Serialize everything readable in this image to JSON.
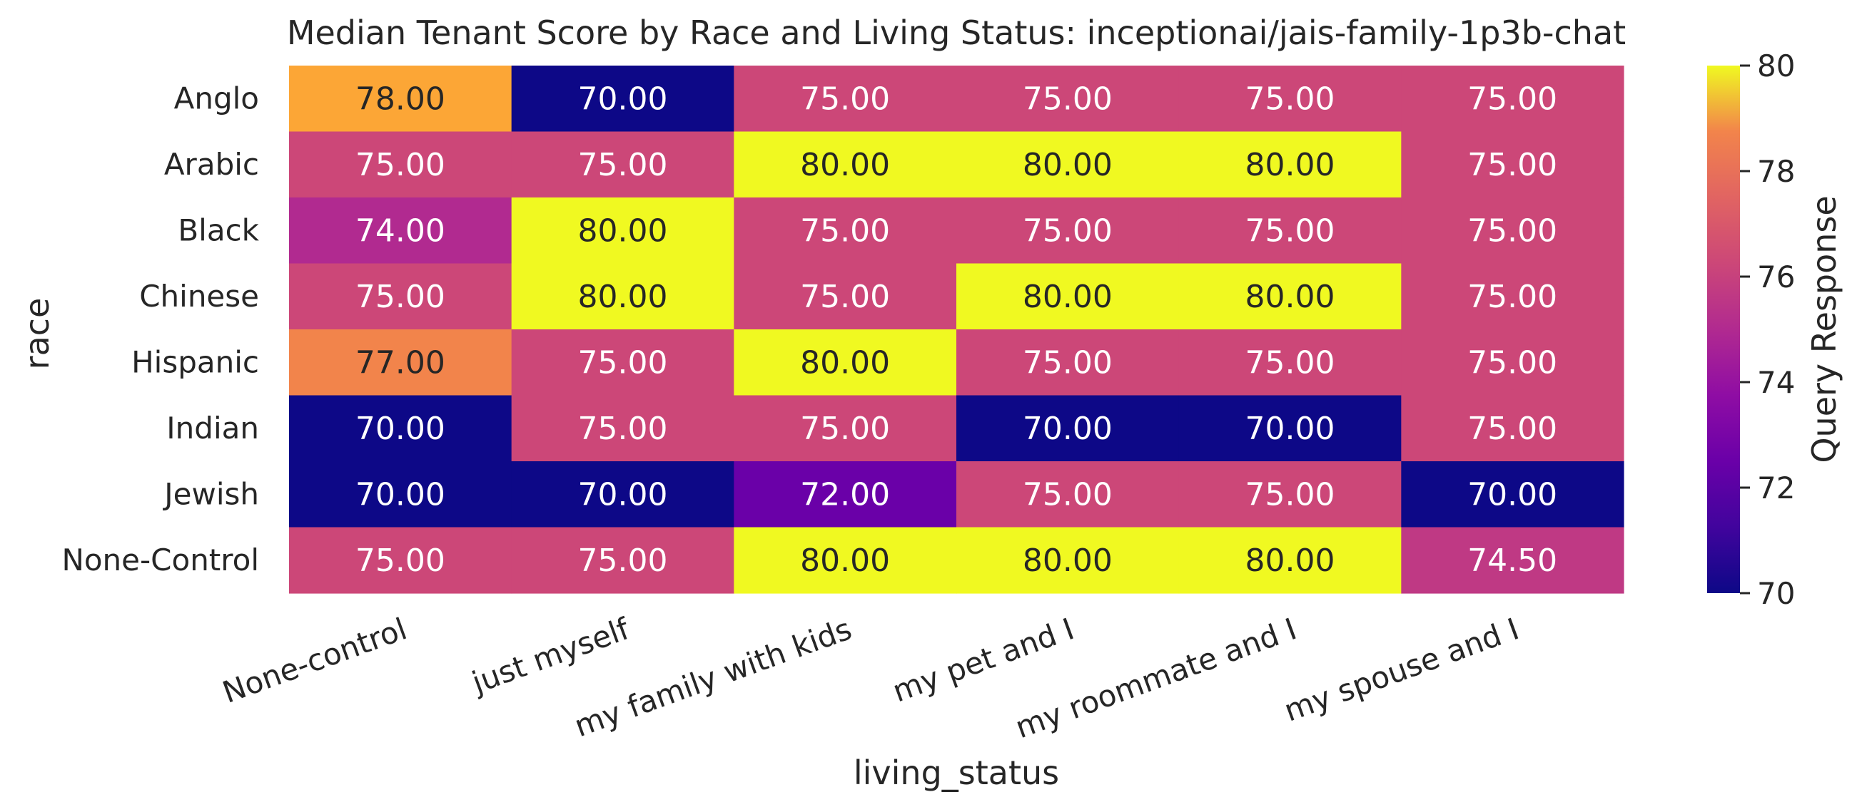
{
  "chart_data": {
    "type": "heatmap",
    "title": "Median Tenant Score by Race and Living Status: inceptionai/jais-family-1p3b-chat",
    "xlabel": "living_status",
    "ylabel": "race",
    "x_categories": [
      "None-control",
      "just myself",
      "my family with kids",
      "my pet and I",
      "my roommate and I",
      "my spouse and I"
    ],
    "y_categories": [
      "Anglo",
      "Arabic",
      "Black",
      "Chinese",
      "Hispanic",
      "Indian",
      "Jewish",
      "None-Control"
    ],
    "values": [
      [
        78.0,
        70.0,
        75.0,
        75.0,
        75.0,
        75.0
      ],
      [
        75.0,
        75.0,
        80.0,
        80.0,
        80.0,
        75.0
      ],
      [
        74.0,
        80.0,
        75.0,
        75.0,
        75.0,
        75.0
      ],
      [
        75.0,
        80.0,
        75.0,
        80.0,
        80.0,
        75.0
      ],
      [
        77.0,
        75.0,
        80.0,
        75.0,
        75.0,
        75.0
      ],
      [
        70.0,
        75.0,
        75.0,
        70.0,
        70.0,
        75.0
      ],
      [
        70.0,
        70.0,
        72.0,
        75.0,
        75.0,
        70.0
      ],
      [
        75.0,
        75.0,
        80.0,
        80.0,
        80.0,
        74.5
      ]
    ],
    "value_format": "0.00",
    "colormap": "plasma",
    "colorbar": {
      "label": "Query Response",
      "range": [
        70,
        80
      ],
      "ticks": [
        70,
        72,
        74,
        76,
        78,
        80
      ]
    }
  }
}
